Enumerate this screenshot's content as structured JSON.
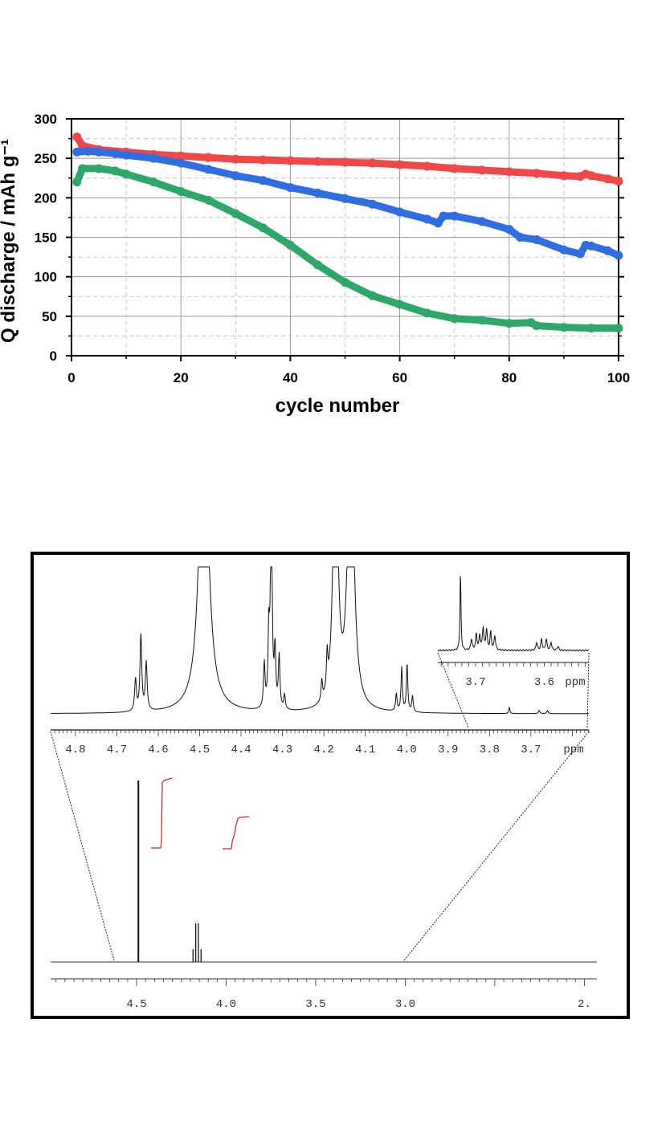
{
  "chart_data": [
    {
      "type": "scatter",
      "title": "",
      "xlabel": "cycle number",
      "ylabel": "Q discharge / mAh g⁻¹",
      "xlim": [
        0,
        100
      ],
      "ylim": [
        0,
        300
      ],
      "x_ticks": [
        "0",
        "20",
        "40",
        "60",
        "80",
        "100"
      ],
      "y_ticks": [
        "0",
        "50",
        "100",
        "150",
        "200",
        "250",
        "300"
      ],
      "grid": true,
      "legend": "none",
      "series": [
        {
          "color": "#f04848",
          "points": [
            [
              1,
              277
            ],
            [
              2,
              266
            ],
            [
              5,
              261
            ],
            [
              10,
              258
            ],
            [
              15,
              255
            ],
            [
              20,
              253
            ],
            [
              25,
              251
            ],
            [
              30,
              249
            ],
            [
              35,
              248
            ],
            [
              40,
              247
            ],
            [
              45,
              246
            ],
            [
              50,
              245
            ],
            [
              55,
              244
            ],
            [
              60,
              242
            ],
            [
              65,
              240
            ],
            [
              70,
              237
            ],
            [
              75,
              235
            ],
            [
              80,
              233
            ],
            [
              85,
              231
            ],
            [
              90,
              228
            ],
            [
              93,
              227
            ],
            [
              94,
              230
            ],
            [
              95,
              228
            ],
            [
              98,
              224
            ],
            [
              100,
              221
            ]
          ]
        },
        {
          "color": "#2f6de0",
          "points": [
            [
              1,
              258
            ],
            [
              3,
              259
            ],
            [
              5,
              258
            ],
            [
              8,
              256
            ],
            [
              10,
              254
            ],
            [
              15,
              250
            ],
            [
              20,
              244
            ],
            [
              25,
              236
            ],
            [
              30,
              228
            ],
            [
              35,
              222
            ],
            [
              40,
              213
            ],
            [
              45,
              206
            ],
            [
              50,
              199
            ],
            [
              55,
              192
            ],
            [
              60,
              182
            ],
            [
              65,
              173
            ],
            [
              67,
              168
            ],
            [
              68,
              177
            ],
            [
              70,
              177
            ],
            [
              75,
              170
            ],
            [
              80,
              160
            ],
            [
              82,
              150
            ],
            [
              85,
              147
            ],
            [
              90,
              134
            ],
            [
              93,
              129
            ],
            [
              94,
              140
            ],
            [
              95,
              139
            ],
            [
              98,
              133
            ],
            [
              100,
              127
            ]
          ]
        },
        {
          "color": "#2ea86a",
          "points": [
            [
              1,
              220
            ],
            [
              2,
              237
            ],
            [
              5,
              237
            ],
            [
              8,
              234
            ],
            [
              10,
              230
            ],
            [
              15,
              220
            ],
            [
              20,
              208
            ],
            [
              25,
              197
            ],
            [
              30,
              180
            ],
            [
              35,
              162
            ],
            [
              40,
              140
            ],
            [
              45,
              115
            ],
            [
              50,
              93
            ],
            [
              55,
              76
            ],
            [
              60,
              65
            ],
            [
              65,
              54
            ],
            [
              70,
              47
            ],
            [
              75,
              45
            ],
            [
              80,
              41
            ],
            [
              84,
              42
            ],
            [
              85,
              38
            ],
            [
              90,
              36
            ],
            [
              95,
              35
            ],
            [
              100,
              35
            ]
          ]
        }
      ]
    },
    {
      "type": "line",
      "title": "",
      "xlabel": "ppm",
      "x_ticks_main": [
        "4.5",
        "4.0",
        "3.5",
        "3.0",
        "2."
      ],
      "x_ticks_zoom": [
        "4.8",
        "4.7",
        "4.6",
        "4.5",
        "4.4",
        "4.3",
        "4.2",
        "4.1",
        "4.0",
        "3.9",
        "3.8",
        "3.7"
      ],
      "zoom_unit": "ppm",
      "x_ticks_inset": [
        "3.7",
        "3.6"
      ],
      "inset_unit": "ppm",
      "peaks_ppm": [
        4.64,
        4.635,
        4.63,
        4.49,
        4.33,
        4.325,
        4.32,
        4.17,
        4.13,
        4.01,
        4.0,
        3.99,
        3.72,
        3.69,
        3.68,
        3.67,
        3.6,
        3.59,
        3.58
      ],
      "integral_color": "#cc2222"
    }
  ]
}
